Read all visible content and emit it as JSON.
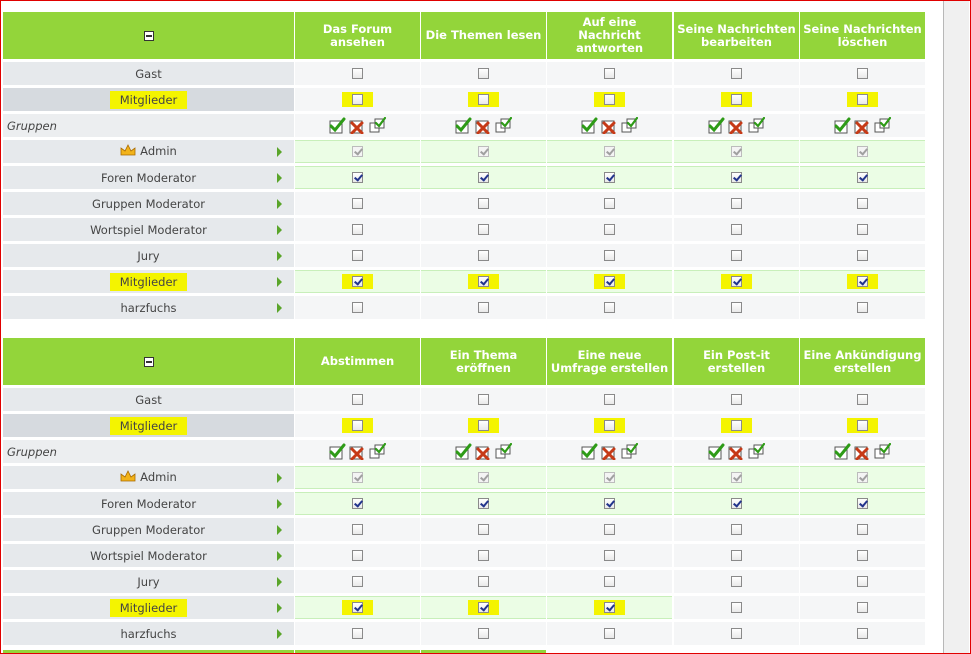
{
  "sections": [
    {
      "columns": [
        "Das Forum ansehen",
        "Die Themen lesen",
        "Auf eine Nachricht antworten",
        "Seine Nachrichten bearbeiten",
        "Seine Nachrichten löschen"
      ],
      "rows": {
        "gast": "Gast",
        "mitglieder": "Mitglieder",
        "gruppen": "Gruppen",
        "admin": "Admin",
        "foren_moderator": "Foren Moderator",
        "gruppen_moderator": "Gruppen Moderator",
        "wortspiel_moderator": "Wortspiel Moderator",
        "jury": "Jury",
        "mitglieder_group": "Mitglieder",
        "harzfuchs": "harzfuchs"
      },
      "mitglieder_group_checked": [
        true,
        true,
        true,
        true,
        true
      ]
    },
    {
      "columns": [
        "Abstimmen",
        "Ein Thema eröffnen",
        "Eine neue Umfrage erstellen",
        "Ein Post-it erstellen",
        "Eine Ankündigung erstellen"
      ],
      "rows": {
        "gast": "Gast",
        "mitglieder": "Mitglieder",
        "gruppen": "Gruppen",
        "admin": "Admin",
        "foren_moderator": "Foren Moderator",
        "gruppen_moderator": "Gruppen Moderator",
        "wortspiel_moderator": "Wortspiel Moderator",
        "jury": "Jury",
        "mitglieder_group": "Mitglieder",
        "harzfuchs": "harzfuchs"
      },
      "mitglieder_group_checked": [
        true,
        true,
        true,
        false,
        false
      ]
    }
  ],
  "colors": {
    "header_green": "#93d53a",
    "highlight_yellow": "#f4f400",
    "row_green": "#ebfde5"
  }
}
